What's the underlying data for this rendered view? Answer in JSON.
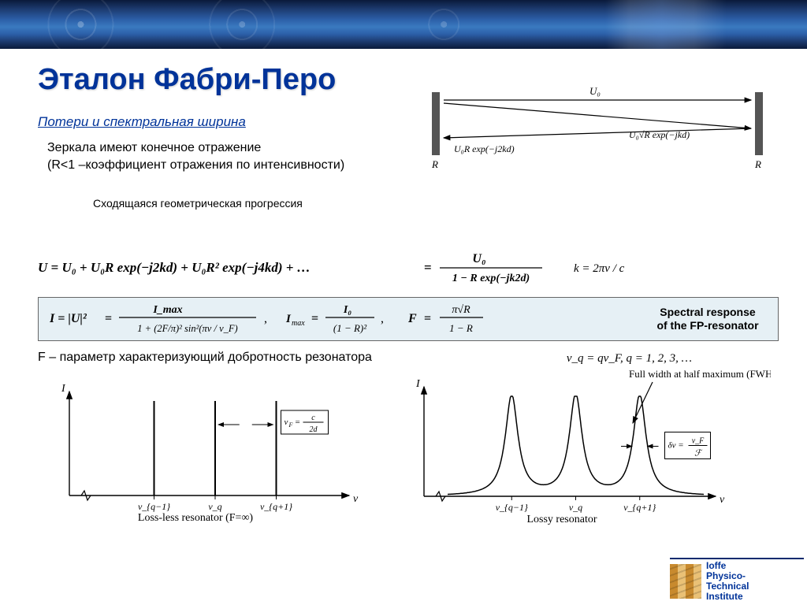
{
  "title": "Эталон Фабри-Перо",
  "subtitle": "Потери и спектральная ширина",
  "body_line1": "Зеркала имеют конечное отражение",
  "body_line2": "(R<1 –коэффициент отражения по интенсивности)",
  "progression_label": "Сходящаяся геометрическая прогрессия",
  "mirror_diagram": {
    "U0": "U₀",
    "left_return": "U₀R exp(−j2kd)",
    "right_going": "U₀√R exp(−jkd)",
    "R_label": "R",
    "mirror_color": "#555555",
    "line_color": "#000000"
  },
  "formula_series": {
    "lhs": "U = U₀ + U₀R exp(−j2kd) + U₀R² exp(−j4kd) + …",
    "rhs_num": "U₀",
    "rhs_den": "1 − R exp(−jk2d)",
    "k_relation": "k = 2πν / c"
  },
  "spectral_box": {
    "I_lhs": "I = |U|²",
    "I_num": "I_max",
    "I_den_a": "1 + (2F/π)² sin²(πν / ν_F)",
    "Imax_num": "I₀",
    "Imax_den": "(1 − R)²",
    "F_num": "π√R",
    "F_den": "1 − R",
    "label_l1": "Spectral response",
    "label_l2": "of the FP-resonator",
    "bg": "#e6f0f5",
    "border": "#666666"
  },
  "f_param_text": "F – параметр характеризующий добротность резонатора",
  "nu_q": "ν_q = qν_F,  q = 1, 2, 3, …",
  "chart_lossless": {
    "type": "line-spectrum",
    "y_label": "I",
    "x_label": "ν",
    "peak_positions": [
      0.25,
      0.5,
      0.75
    ],
    "peak_labels": [
      "ν_{q−1}",
      "ν_q",
      "ν_{q+1}"
    ],
    "spacing_label": "ν_F = c / 2d",
    "caption": "Loss-less resonator (F=∞)",
    "line_color": "#000000",
    "peak_height": 1.0,
    "xlim": [
      0,
      1
    ],
    "ylim": [
      0,
      1.1
    ],
    "line_width": 1.5
  },
  "chart_lossy": {
    "type": "lorentzian-comb",
    "y_label": "I",
    "x_label": "ν",
    "peak_positions": [
      0.25,
      0.5,
      0.75
    ],
    "peak_labels": [
      "ν_{q−1}",
      "ν_q",
      "ν_{q+1}"
    ],
    "fwhm_marker": "δν = ν_F / ℱ",
    "fwhm_title": "Full width at half maximum (FWHM)",
    "caption": "Lossy resonator",
    "line_color": "#000000",
    "peak_height": 1.0,
    "peak_halfwidth": 0.03,
    "xlim": [
      0,
      1
    ],
    "ylim": [
      0,
      1.1
    ],
    "line_width": 1.5
  },
  "logo": {
    "l1": "Ioffe",
    "l2": "Physico-",
    "l3": "Technical",
    "l4": "Institute",
    "accent": "#003399"
  },
  "colors": {
    "title": "#003399",
    "text": "#000000",
    "banner_grad": [
      "#0a1a3a",
      "#3a7ac0"
    ]
  }
}
